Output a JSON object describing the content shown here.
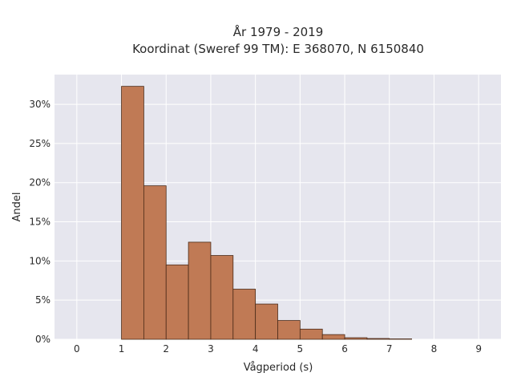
{
  "chart_data": {
    "type": "bar",
    "title_line1": "År 1979 - 2019",
    "title_line2": "Koordinat (Sweref 99 TM): E 368070, N 6150840",
    "xlabel": "Vågperiod (s)",
    "ylabel": "Andel",
    "xlim": [
      -0.5,
      9.5
    ],
    "ylim": [
      0,
      33.8
    ],
    "x_ticks": [
      0,
      1,
      2,
      3,
      4,
      5,
      6,
      7,
      8,
      9
    ],
    "y_ticks": [
      0,
      5,
      10,
      15,
      20,
      25,
      30
    ],
    "y_tick_labels": [
      "0%",
      "5%",
      "10%",
      "15%",
      "20%",
      "25%",
      "30%"
    ],
    "bin_width": 0.5,
    "bins": [
      {
        "x0": 1.0,
        "value": 32.3
      },
      {
        "x0": 1.5,
        "value": 19.6
      },
      {
        "x0": 2.0,
        "value": 9.5
      },
      {
        "x0": 2.5,
        "value": 12.4
      },
      {
        "x0": 3.0,
        "value": 10.7
      },
      {
        "x0": 3.5,
        "value": 6.4
      },
      {
        "x0": 4.0,
        "value": 4.5
      },
      {
        "x0": 4.5,
        "value": 2.4
      },
      {
        "x0": 5.0,
        "value": 1.3
      },
      {
        "x0": 5.5,
        "value": 0.6
      },
      {
        "x0": 6.0,
        "value": 0.2
      },
      {
        "x0": 6.5,
        "value": 0.1
      },
      {
        "x0": 7.0,
        "value": 0.05
      }
    ],
    "grid": true,
    "colors": {
      "bar_fill": "#c07a55",
      "bar_stroke": "#4a2a18",
      "plot_bg": "#e6e6ee",
      "grid": "#ffffff"
    }
  }
}
